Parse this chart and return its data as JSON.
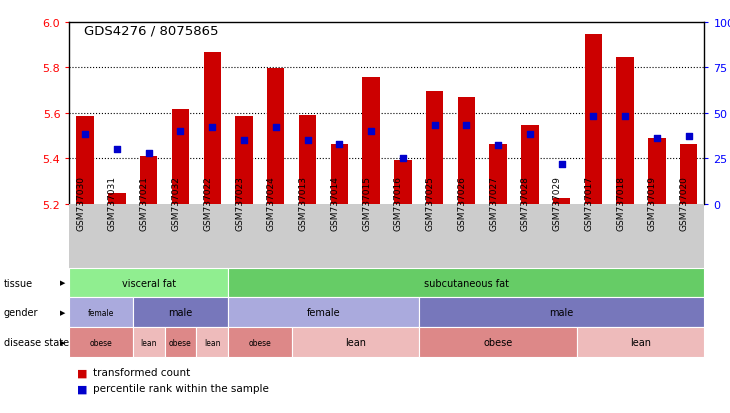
{
  "title": "GDS4276 / 8075865",
  "samples": [
    "GSM737030",
    "GSM737031",
    "GSM737021",
    "GSM737032",
    "GSM737022",
    "GSM737023",
    "GSM737024",
    "GSM737013",
    "GSM737014",
    "GSM737015",
    "GSM737016",
    "GSM737025",
    "GSM737026",
    "GSM737027",
    "GSM737028",
    "GSM737029",
    "GSM737017",
    "GSM737018",
    "GSM737019",
    "GSM737020"
  ],
  "bar_values": [
    5.585,
    5.245,
    5.41,
    5.615,
    5.865,
    5.585,
    5.795,
    5.59,
    5.46,
    5.755,
    5.39,
    5.695,
    5.67,
    5.46,
    5.545,
    5.225,
    5.945,
    5.845,
    5.49,
    5.46
  ],
  "percentile_values": [
    38,
    30,
    28,
    40,
    42,
    35,
    42,
    35,
    33,
    40,
    25,
    43,
    43,
    32,
    38,
    22,
    48,
    48,
    36,
    37
  ],
  "ymin": 5.2,
  "ymax": 6.0,
  "yticks_left": [
    5.2,
    5.4,
    5.6,
    5.8,
    6.0
  ],
  "yticks_right": [
    0,
    25,
    50,
    75,
    100
  ],
  "gridlines": [
    5.4,
    5.6,
    5.8
  ],
  "bar_color": "#cc0000",
  "dot_color": "#0000cc",
  "dot_size": 25,
  "bar_width": 0.55,
  "tissue_groups": [
    {
      "label": "visceral fat",
      "start": 0,
      "end": 5,
      "color": "#90ee90"
    },
    {
      "label": "subcutaneous fat",
      "start": 5,
      "end": 20,
      "color": "#66cc66"
    }
  ],
  "gender_groups": [
    {
      "label": "female",
      "start": 0,
      "end": 2,
      "color": "#aaaadd"
    },
    {
      "label": "male",
      "start": 2,
      "end": 5,
      "color": "#7777bb"
    },
    {
      "label": "female",
      "start": 5,
      "end": 11,
      "color": "#aaaadd"
    },
    {
      "label": "male",
      "start": 11,
      "end": 20,
      "color": "#7777bb"
    }
  ],
  "disease_groups": [
    {
      "label": "obese",
      "start": 0,
      "end": 2,
      "color": "#dd8888"
    },
    {
      "label": "lean",
      "start": 2,
      "end": 3,
      "color": "#eebbbb"
    },
    {
      "label": "obese",
      "start": 3,
      "end": 4,
      "color": "#dd8888"
    },
    {
      "label": "lean",
      "start": 4,
      "end": 5,
      "color": "#eebbbb"
    },
    {
      "label": "obese",
      "start": 5,
      "end": 7,
      "color": "#dd8888"
    },
    {
      "label": "lean",
      "start": 7,
      "end": 11,
      "color": "#eebbbb"
    },
    {
      "label": "obese",
      "start": 11,
      "end": 16,
      "color": "#dd8888"
    },
    {
      "label": "lean",
      "start": 16,
      "end": 20,
      "color": "#eebbbb"
    }
  ],
  "annot_row_labels": [
    "tissue",
    "gender",
    "disease state"
  ],
  "legend_items": [
    {
      "label": "transformed count",
      "color": "#cc0000"
    },
    {
      "label": "percentile rank within the sample",
      "color": "#0000cc"
    }
  ],
  "xtick_bg_color": "#cccccc",
  "fig_bg": "#ffffff"
}
